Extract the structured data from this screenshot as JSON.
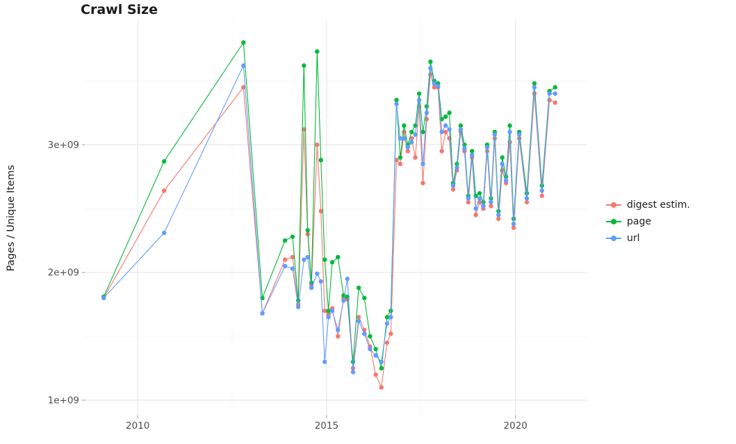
{
  "chart_data": {
    "type": "line",
    "title": "Crawl Size",
    "xlabel": "",
    "ylabel": "Pages / Unique Items",
    "background": "#ffffff",
    "grid": true,
    "grid_major_color": "#e4e4e4",
    "grid_minor_color": "#f2f2f2",
    "tick_color": "#999999",
    "tick_label_color": "#4d4d4d",
    "legend_position": "right",
    "xlim": [
      2008.6,
      2021.9
    ],
    "ylim": [
      880000000.0,
      3970000000.0
    ],
    "x_ticks": [
      2010,
      2015,
      2020
    ],
    "x_tick_labels": [
      "2010",
      "2015",
      "2020"
    ],
    "x_minor": [
      2012.5,
      2017.5
    ],
    "y_ticks": [
      1000000000.0,
      2000000000.0,
      3000000000.0
    ],
    "y_tick_labels": [
      "1e+09",
      "2e+09",
      "3e+09"
    ],
    "y_minor": [
      1500000000.0,
      2500000000.0,
      3500000000.0
    ],
    "x": [
      2009.1,
      2010.7,
      2012.8,
      2013.3,
      2013.9,
      2014.1,
      2014.25,
      2014.4,
      2014.5,
      2014.6,
      2014.75,
      2014.85,
      2014.95,
      2015.05,
      2015.15,
      2015.3,
      2015.45,
      2015.55,
      2015.7,
      2015.85,
      2016.0,
      2016.15,
      2016.3,
      2016.45,
      2016.6,
      2016.7,
      2016.85,
      2016.95,
      2017.05,
      2017.15,
      2017.25,
      2017.35,
      2017.45,
      2017.55,
      2017.65,
      2017.75,
      2017.85,
      2017.95,
      2018.05,
      2018.15,
      2018.25,
      2018.35,
      2018.45,
      2018.55,
      2018.65,
      2018.75,
      2018.85,
      2018.95,
      2019.05,
      2019.15,
      2019.25,
      2019.35,
      2019.45,
      2019.55,
      2019.65,
      2019.75,
      2019.85,
      2019.95,
      2020.1,
      2020.3,
      2020.5,
      2020.7,
      2020.9,
      2021.05
    ],
    "series": [
      {
        "name": "digest estim.",
        "color": "#F8766D",
        "values": [
          1800000000.0,
          2640000000.0,
          3450000000.0,
          1680000000.0,
          2100000000.0,
          2120000000.0,
          1750000000.0,
          3120000000.0,
          2300000000.0,
          1900000000.0,
          3000000000.0,
          2480000000.0,
          1700000000.0,
          1670000000.0,
          1720000000.0,
          1500000000.0,
          1800000000.0,
          1790000000.0,
          1250000000.0,
          1650000000.0,
          1550000000.0,
          1420000000.0,
          1200000000.0,
          1100000000.0,
          1450000000.0,
          1520000000.0,
          2880000000.0,
          2850000000.0,
          3100000000.0,
          2950000000.0,
          3050000000.0,
          2900000000.0,
          3300000000.0,
          2700000000.0,
          3200000000.0,
          3550000000.0,
          3450000000.0,
          3450000000.0,
          2950000000.0,
          3100000000.0,
          3050000000.0,
          2650000000.0,
          2800000000.0,
          3100000000.0,
          2950000000.0,
          2550000000.0,
          2900000000.0,
          2450000000.0,
          2550000000.0,
          2500000000.0,
          2950000000.0,
          2520000000.0,
          3050000000.0,
          2420000000.0,
          2800000000.0,
          2700000000.0,
          3020000000.0,
          2350000000.0,
          3050000000.0,
          2550000000.0,
          3400000000.0,
          2600000000.0,
          3350000000.0,
          3330000000.0
        ]
      },
      {
        "name": "page",
        "color": "#00BA38",
        "values": [
          1810000000.0,
          2870000000.0,
          3800000000.0,
          1800000000.0,
          2250000000.0,
          2280000000.0,
          1780000000.0,
          3620000000.0,
          2330000000.0,
          1920000000.0,
          3730000000.0,
          2880000000.0,
          2100000000.0,
          1700000000.0,
          2080000000.0,
          2120000000.0,
          1820000000.0,
          1810000000.0,
          1300000000.0,
          1880000000.0,
          1800000000.0,
          1500000000.0,
          1400000000.0,
          1250000000.0,
          1650000000.0,
          1700000000.0,
          3350000000.0,
          2900000000.0,
          3150000000.0,
          3000000000.0,
          3100000000.0,
          3150000000.0,
          3400000000.0,
          3100000000.0,
          3300000000.0,
          3650000000.0,
          3500000000.0,
          3480000000.0,
          3200000000.0,
          3220000000.0,
          3250000000.0,
          2700000000.0,
          2850000000.0,
          3150000000.0,
          3000000000.0,
          2600000000.0,
          2950000000.0,
          2600000000.0,
          2620000000.0,
          2550000000.0,
          3000000000.0,
          2580000000.0,
          3100000000.0,
          2480000000.0,
          2900000000.0,
          2750000000.0,
          3150000000.0,
          2420000000.0,
          3100000000.0,
          2620000000.0,
          3480000000.0,
          2680000000.0,
          3420000000.0,
          3450000000.0
        ]
      },
      {
        "name": "url",
        "color": "#619CFF",
        "values": [
          1800000000.0,
          2310000000.0,
          3620000000.0,
          1680000000.0,
          2050000000.0,
          2030000000.0,
          1730000000.0,
          2100000000.0,
          2120000000.0,
          1880000000.0,
          1990000000.0,
          1930000000.0,
          1300000000.0,
          1650000000.0,
          1700000000.0,
          1550000000.0,
          1780000000.0,
          1950000000.0,
          1220000000.0,
          1620000000.0,
          1520000000.0,
          1400000000.0,
          1350000000.0,
          1300000000.0,
          1600000000.0,
          1650000000.0,
          3320000000.0,
          3050000000.0,
          3050000000.0,
          2980000000.0,
          3020000000.0,
          3080000000.0,
          3350000000.0,
          2850000000.0,
          3250000000.0,
          3600000000.0,
          3480000000.0,
          3460000000.0,
          3100000000.0,
          3150000000.0,
          3120000000.0,
          2680000000.0,
          2820000000.0,
          3120000000.0,
          2970000000.0,
          2580000000.0,
          2920000000.0,
          2500000000.0,
          2580000000.0,
          2520000000.0,
          2980000000.0,
          2550000000.0,
          3080000000.0,
          2450000000.0,
          2850000000.0,
          2720000000.0,
          3100000000.0,
          2380000000.0,
          3080000000.0,
          2580000000.0,
          3450000000.0,
          2640000000.0,
          3400000000.0,
          3400000000.0
        ]
      }
    ]
  }
}
